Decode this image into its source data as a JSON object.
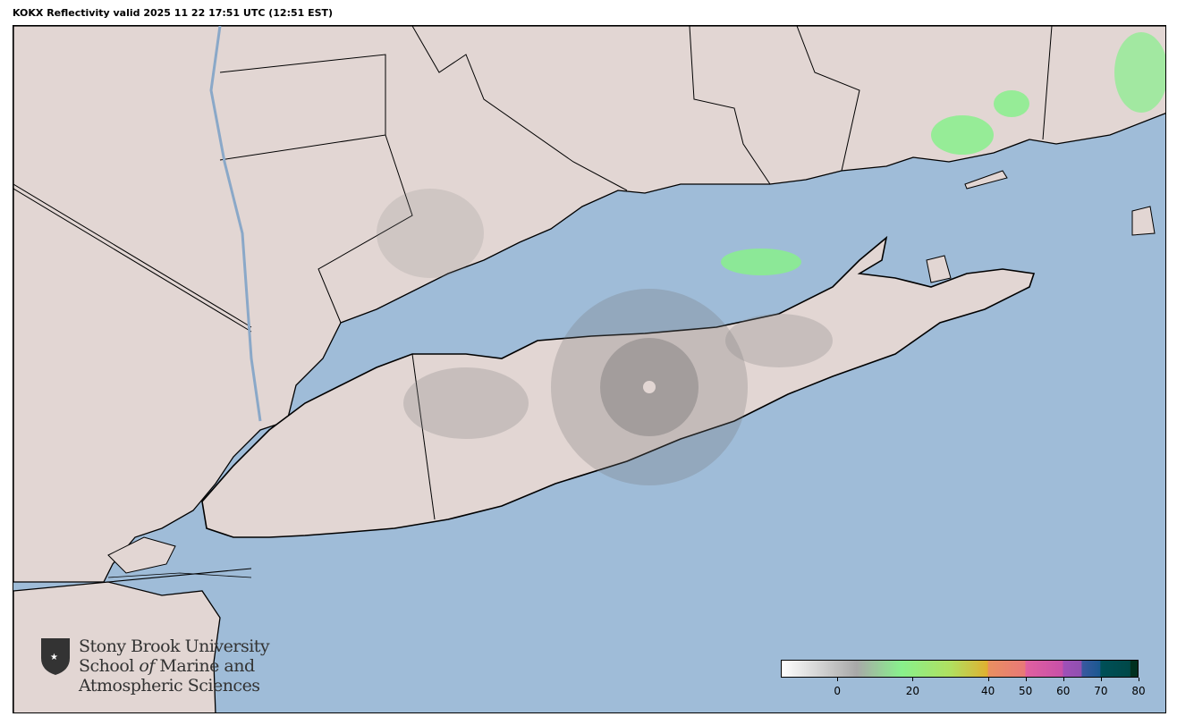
{
  "title": "KOKX Reflectivity valid 2025 11 22 17:51 UTC (12:51 EST)",
  "logo": {
    "line1": "Stony Brook University",
    "line2_a": "School ",
    "line2_b": "of",
    "line2_c": " Marine and",
    "line3": "Atmospheric Sciences"
  },
  "colors": {
    "water": "#9fbcd8",
    "land": "#e2d6d3",
    "border": "#000000"
  },
  "colorbar": {
    "range": [
      -15,
      80
    ],
    "ticks": [
      "0",
      "20",
      "40",
      "50",
      "60",
      "70",
      "80"
    ],
    "tick_values": [
      0,
      20,
      40,
      50,
      60,
      70,
      80
    ],
    "stops": [
      {
        "v": -15,
        "c": "#ffffff"
      },
      {
        "v": 5,
        "c": "#a8a8a8"
      },
      {
        "v": 17,
        "c": "#88f08c"
      },
      {
        "v": 30,
        "c": "#b0e060"
      },
      {
        "v": 40,
        "c": "#e0b030"
      },
      {
        "v": 40.1,
        "c": "#e89060"
      },
      {
        "v": 50,
        "c": "#e87878"
      },
      {
        "v": 50.1,
        "c": "#e060a0"
      },
      {
        "v": 60,
        "c": "#c850a8"
      },
      {
        "v": 60.1,
        "c": "#a050b8"
      },
      {
        "v": 65,
        "c": "#9050b0"
      },
      {
        "v": 65.1,
        "c": "#3a58a0"
      },
      {
        "v": 70,
        "c": "#1a5890"
      },
      {
        "v": 70.1,
        "c": "#005058"
      },
      {
        "v": 78,
        "c": "#004848"
      },
      {
        "v": 78.1,
        "c": "#003020"
      },
      {
        "v": 80,
        "c": "#003020"
      }
    ]
  }
}
